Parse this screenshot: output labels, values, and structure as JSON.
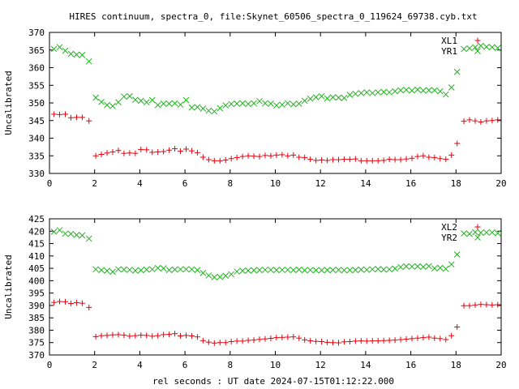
{
  "title": "HIRES continuum, spectra_0, file:Skynet_60506_spectra_0_119624_69738.cyb.txt",
  "xlabel": "rel seconds : UT date 2024-07-15T01:12:22.000",
  "colors": {
    "plus_series": "#e8000b",
    "x_series": "#21b21f"
  },
  "chart_data": [
    {
      "type": "scatter",
      "ylabel": "Uncalibrated",
      "xlim": [
        0,
        20
      ],
      "ylim": [
        330,
        370
      ],
      "x_ticks": [
        "0",
        "2",
        "4",
        "6",
        "8",
        "10",
        "12",
        "14",
        "16",
        "18",
        "20"
      ],
      "y_ticks": [
        "330",
        "335",
        "340",
        "345",
        "350",
        "355",
        "360",
        "365",
        "370"
      ],
      "grid": false,
      "legend_position": "top-right",
      "series": [
        {
          "name": "XL1",
          "marker": "plus",
          "x": [
            0.2,
            0.45,
            0.7,
            0.95,
            1.2,
            1.45,
            1.75,
            2.05,
            2.3,
            2.55,
            2.8,
            3.05,
            3.3,
            3.55,
            3.8,
            4.05,
            4.3,
            4.55,
            4.8,
            5.05,
            5.3,
            5.55,
            5.8,
            6.05,
            6.3,
            6.55,
            6.8,
            7.05,
            7.3,
            7.55,
            7.8,
            8.05,
            8.3,
            8.55,
            8.8,
            9.05,
            9.3,
            9.55,
            9.8,
            10.05,
            10.3,
            10.55,
            10.8,
            11.05,
            11.3,
            11.55,
            11.8,
            12.05,
            12.3,
            12.55,
            12.8,
            13.05,
            13.3,
            13.55,
            13.8,
            14.05,
            14.3,
            14.55,
            14.8,
            15.05,
            15.3,
            15.55,
            15.8,
            16.05,
            16.3,
            16.55,
            16.8,
            17.05,
            17.3,
            17.55,
            17.8,
            18.05,
            18.35,
            18.6,
            18.85,
            19.1,
            19.35,
            19.6,
            19.85
          ],
          "y": [
            346.8,
            346.7,
            346.8,
            345.8,
            345.9,
            345.9,
            344.9,
            335.0,
            335.4,
            335.8,
            336.1,
            336.5,
            335.7,
            335.8,
            335.7,
            336.8,
            336.7,
            336.0,
            336.1,
            336.2,
            336.6,
            337.0,
            336.3,
            336.9,
            336.4,
            335.9,
            334.6,
            333.9,
            333.6,
            333.6,
            333.8,
            334.2,
            334.5,
            334.8,
            335.0,
            334.9,
            334.8,
            335.1,
            335.0,
            335.2,
            335.3,
            335.0,
            335.2,
            334.6,
            334.5,
            334.0,
            333.7,
            333.8,
            333.7,
            333.9,
            333.9,
            334.0,
            334.0,
            334.1,
            333.6,
            333.6,
            333.6,
            333.6,
            333.7,
            334.0,
            333.9,
            333.9,
            334.1,
            334.3,
            334.8,
            335.0,
            334.6,
            334.5,
            334.2,
            334.0,
            335.2,
            338.5,
            344.8,
            345.2,
            344.9,
            344.6,
            344.9,
            345.0,
            345.2
          ]
        },
        {
          "name": "YR1",
          "marker": "x",
          "x": [
            0.2,
            0.45,
            0.7,
            0.95,
            1.2,
            1.45,
            1.75,
            2.05,
            2.3,
            2.55,
            2.8,
            3.05,
            3.3,
            3.55,
            3.8,
            4.05,
            4.3,
            4.55,
            4.8,
            5.05,
            5.3,
            5.55,
            5.8,
            6.05,
            6.3,
            6.55,
            6.8,
            7.05,
            7.3,
            7.55,
            7.8,
            8.05,
            8.3,
            8.55,
            8.8,
            9.05,
            9.3,
            9.55,
            9.8,
            10.05,
            10.3,
            10.55,
            10.8,
            11.05,
            11.3,
            11.55,
            11.8,
            12.05,
            12.3,
            12.55,
            12.8,
            13.05,
            13.3,
            13.55,
            13.8,
            14.05,
            14.3,
            14.55,
            14.8,
            15.05,
            15.3,
            15.55,
            15.8,
            16.05,
            16.3,
            16.55,
            16.8,
            17.05,
            17.3,
            17.55,
            17.8,
            18.05,
            18.35,
            18.6,
            18.85,
            19.1,
            19.35,
            19.6,
            19.85
          ],
          "y": [
            365.3,
            365.8,
            364.8,
            363.9,
            363.7,
            363.6,
            361.8,
            351.5,
            350.3,
            349.4,
            349.1,
            350.2,
            351.8,
            351.9,
            350.9,
            350.6,
            350.2,
            350.8,
            349.4,
            349.8,
            349.8,
            349.9,
            349.5,
            350.8,
            348.7,
            348.8,
            348.4,
            347.8,
            347.6,
            348.5,
            349.3,
            349.7,
            349.8,
            349.9,
            349.7,
            349.9,
            350.5,
            349.9,
            349.8,
            349.3,
            349.5,
            349.9,
            349.6,
            349.8,
            350.6,
            351.2,
            351.6,
            351.9,
            351.3,
            351.6,
            351.5,
            351.4,
            352.3,
            352.6,
            352.8,
            353.0,
            352.8,
            353.0,
            353.1,
            353.0,
            353.3,
            353.6,
            353.7,
            353.5,
            353.8,
            353.5,
            353.6,
            353.6,
            353.3,
            352.4,
            354.4,
            358.8,
            365.3,
            365.5,
            365.8,
            366.2,
            365.9,
            365.8,
            365.6
          ]
        }
      ]
    },
    {
      "type": "scatter",
      "ylabel": "Uncalibrated",
      "xlim": [
        0,
        20
      ],
      "ylim": [
        370,
        425
      ],
      "x_ticks": [
        "0",
        "2",
        "4",
        "6",
        "8",
        "10",
        "12",
        "14",
        "16",
        "18",
        "20"
      ],
      "y_ticks": [
        "370",
        "375",
        "380",
        "385",
        "390",
        "395",
        "400",
        "405",
        "410",
        "415",
        "420",
        "425"
      ],
      "grid": false,
      "legend_position": "top-right",
      "series": [
        {
          "name": "XL2",
          "marker": "plus",
          "x": [
            0.2,
            0.45,
            0.7,
            0.95,
            1.2,
            1.45,
            1.75,
            2.05,
            2.3,
            2.55,
            2.8,
            3.05,
            3.3,
            3.55,
            3.8,
            4.05,
            4.3,
            4.55,
            4.8,
            5.05,
            5.3,
            5.55,
            5.8,
            6.05,
            6.3,
            6.55,
            6.8,
            7.05,
            7.3,
            7.55,
            7.8,
            8.05,
            8.3,
            8.55,
            8.8,
            9.05,
            9.3,
            9.55,
            9.8,
            10.05,
            10.3,
            10.55,
            10.8,
            11.05,
            11.3,
            11.55,
            11.8,
            12.05,
            12.3,
            12.55,
            12.8,
            13.05,
            13.3,
            13.55,
            13.8,
            14.05,
            14.3,
            14.55,
            14.8,
            15.05,
            15.3,
            15.55,
            15.8,
            16.05,
            16.3,
            16.55,
            16.8,
            17.05,
            17.3,
            17.55,
            17.8,
            18.05,
            18.35,
            18.6,
            18.85,
            19.1,
            19.35,
            19.6,
            19.85
          ],
          "y": [
            391.2,
            391.6,
            391.5,
            390.8,
            391.1,
            390.9,
            389.2,
            377.4,
            377.8,
            377.9,
            378.1,
            378.2,
            378.0,
            377.6,
            377.8,
            378.0,
            377.9,
            377.6,
            377.8,
            378.2,
            378.3,
            378.6,
            377.7,
            377.9,
            377.7,
            377.3,
            375.8,
            375.2,
            374.8,
            375.0,
            375.0,
            375.4,
            375.6,
            375.6,
            375.9,
            376.0,
            376.3,
            376.5,
            376.7,
            377.0,
            377.1,
            377.2,
            377.3,
            376.8,
            376.1,
            375.7,
            375.5,
            375.4,
            375.1,
            375.0,
            374.9,
            375.3,
            375.4,
            375.6,
            375.7,
            375.6,
            375.7,
            375.7,
            375.8,
            375.9,
            376.0,
            376.2,
            376.4,
            376.6,
            376.8,
            377.0,
            377.2,
            376.8,
            376.6,
            376.2,
            377.8,
            381.3,
            389.9,
            389.9,
            390.2,
            390.4,
            390.3,
            390.2,
            390.3
          ]
        },
        {
          "name": "YR2",
          "marker": "x",
          "x": [
            0.2,
            0.45,
            0.7,
            0.95,
            1.2,
            1.45,
            1.75,
            2.05,
            2.3,
            2.55,
            2.8,
            3.05,
            3.3,
            3.55,
            3.8,
            4.05,
            4.3,
            4.55,
            4.8,
            5.05,
            5.3,
            5.55,
            5.8,
            6.05,
            6.3,
            6.55,
            6.8,
            7.05,
            7.3,
            7.55,
            7.8,
            8.05,
            8.3,
            8.55,
            8.8,
            9.05,
            9.3,
            9.55,
            9.8,
            10.05,
            10.3,
            10.55,
            10.8,
            11.05,
            11.3,
            11.55,
            11.8,
            12.05,
            12.3,
            12.55,
            12.8,
            13.05,
            13.3,
            13.55,
            13.8,
            14.05,
            14.3,
            14.55,
            14.8,
            15.05,
            15.3,
            15.55,
            15.8,
            16.05,
            16.3,
            16.55,
            16.8,
            17.05,
            17.3,
            17.55,
            17.8,
            18.05,
            18.35,
            18.6,
            18.85,
            19.1,
            19.35,
            19.6,
            19.85
          ],
          "y": [
            419.8,
            420.4,
            419.0,
            418.9,
            418.5,
            418.3,
            417.0,
            404.6,
            404.3,
            404.0,
            403.6,
            404.6,
            404.5,
            404.4,
            404.1,
            404.2,
            404.5,
            404.6,
            405.1,
            405.0,
            404.3,
            404.5,
            404.6,
            404.6,
            404.6,
            404.3,
            403.1,
            402.1,
            401.4,
            401.5,
            402.0,
            402.6,
            403.7,
            404.0,
            404.1,
            404.2,
            404.3,
            404.4,
            404.4,
            404.3,
            404.4,
            404.4,
            404.3,
            404.5,
            404.2,
            404.3,
            404.2,
            404.2,
            404.3,
            404.3,
            404.4,
            404.2,
            404.3,
            404.3,
            404.5,
            404.4,
            404.6,
            404.7,
            404.5,
            404.6,
            404.9,
            405.5,
            405.8,
            405.7,
            405.8,
            405.6,
            405.9,
            405.0,
            405.2,
            404.8,
            406.6,
            410.6,
            419.1,
            418.9,
            419.6,
            419.4,
            419.5,
            419.5,
            419.2
          ]
        }
      ]
    }
  ]
}
